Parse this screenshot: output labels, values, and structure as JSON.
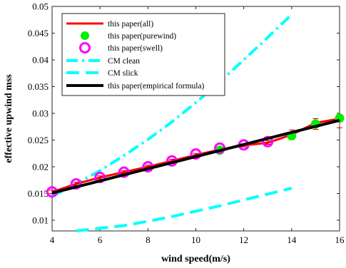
{
  "chart_data": {
    "type": "line",
    "xlabel": "wind speed(m/s)",
    "ylabel": "effective upwind mss",
    "xlim": [
      4,
      16
    ],
    "ylim": [
      0.008,
      0.05
    ],
    "xticks": [
      4,
      6,
      8,
      10,
      12,
      14,
      16
    ],
    "yticks": [
      0.01,
      0.015,
      0.02,
      0.025,
      0.03,
      0.035,
      0.04,
      0.045,
      0.05
    ],
    "ytick_labels": [
      "0.01",
      "0.015",
      "0.02",
      "0.025",
      "0.03",
      "0.035",
      "0.04",
      "0.045",
      "0.05"
    ],
    "grid": false,
    "legend_position": "top-left",
    "series": [
      {
        "name": "this paper(all)",
        "style": "solid-line",
        "color": "#ff0000",
        "x": [
          4,
          5,
          6,
          7,
          8,
          9,
          10,
          11,
          12,
          13,
          14,
          15,
          16
        ],
        "y": [
          0.0153,
          0.0168,
          0.018,
          0.019,
          0.02,
          0.0211,
          0.0222,
          0.0232,
          0.024,
          0.0245,
          0.026,
          0.0282,
          0.029
        ]
      },
      {
        "name": "this paper(purewind)",
        "style": "dot-marker",
        "color": "#00ee00",
        "x": [
          11,
          14,
          15,
          16
        ],
        "y": [
          0.0231,
          0.0258,
          0.028,
          0.0291
        ]
      },
      {
        "name": "this paper(swell)",
        "style": "circle-marker",
        "color": "#ff00ff",
        "x": [
          4,
          5,
          6,
          7,
          8,
          9,
          10,
          11,
          12,
          13
        ],
        "y": [
          0.0153,
          0.0168,
          0.018,
          0.019,
          0.02,
          0.0211,
          0.0224,
          0.0235,
          0.0241,
          0.0247
        ]
      },
      {
        "name": "CM clean",
        "style": "dash-dot-line",
        "color": "#00ffff",
        "x": [
          4,
          5,
          6,
          7,
          8,
          9,
          10,
          11,
          12,
          13,
          14
        ],
        "y": [
          0.0145,
          0.0168,
          0.0193,
          0.0221,
          0.0251,
          0.0284,
          0.032,
          0.0359,
          0.04,
          0.0442,
          0.0485
        ]
      },
      {
        "name": "CM slick",
        "style": "dashed-line",
        "color": "#00ffff",
        "x": [
          5,
          6,
          7,
          8,
          9,
          10,
          11,
          12,
          13,
          14
        ],
        "y": [
          0.008,
          0.0085,
          0.009,
          0.0098,
          0.0107,
          0.0117,
          0.0127,
          0.0138,
          0.0149,
          0.016
        ]
      },
      {
        "name": "this paper(empirical formula)",
        "style": "thick-solid-line",
        "color": "#000000",
        "x": [
          4,
          16
        ],
        "y": [
          0.0151,
          0.0287
        ]
      }
    ],
    "errorbars": {
      "color": "#cc0000",
      "x": [
        4,
        5,
        6,
        7,
        8,
        9,
        10,
        11,
        12,
        13,
        14,
        15,
        16
      ],
      "low": [
        0.015,
        0.0165,
        0.0177,
        0.0187,
        0.0197,
        0.0208,
        0.0219,
        0.0229,
        0.0237,
        0.0242,
        0.0251,
        0.027,
        0.0273
      ],
      "high": [
        0.0156,
        0.0171,
        0.0183,
        0.0193,
        0.0203,
        0.0214,
        0.0225,
        0.0235,
        0.0243,
        0.0249,
        0.0269,
        0.029,
        0.0292
      ]
    }
  }
}
